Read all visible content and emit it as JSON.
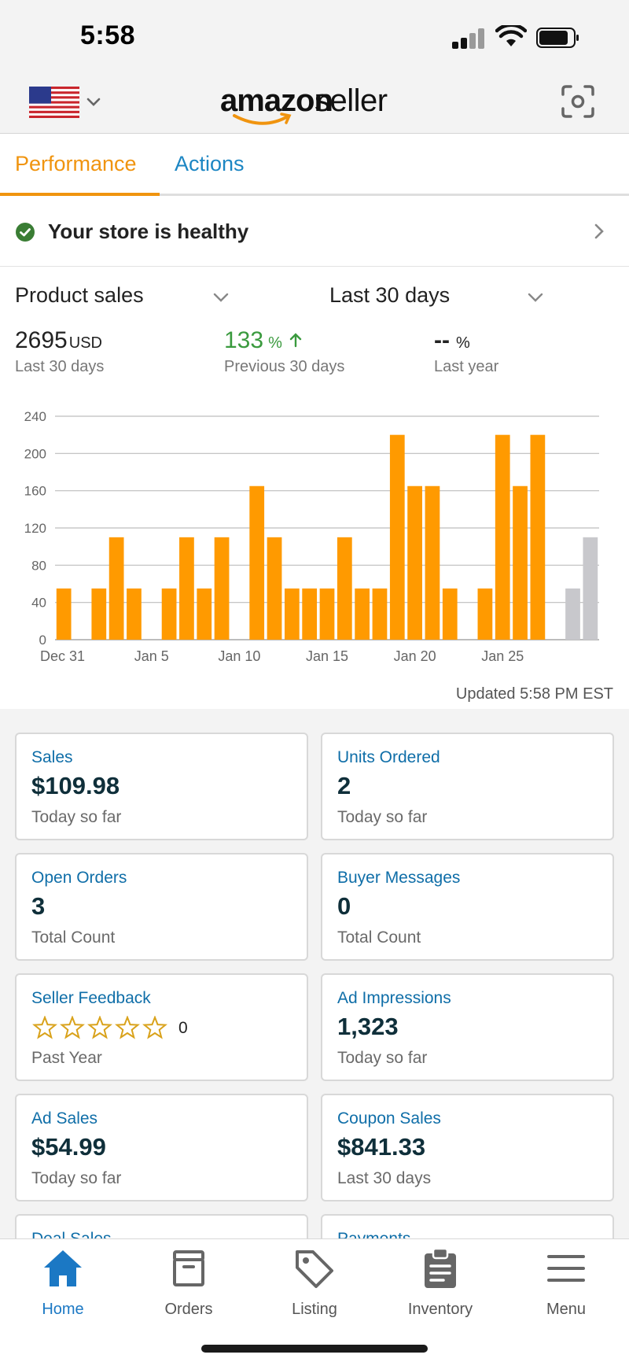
{
  "status_bar": {
    "time": "5:58"
  },
  "header": {
    "logo_word_1": "amazon",
    "logo_word_2": "seller",
    "colors": {
      "accent": "#f0940f",
      "link": "#1c86c3"
    }
  },
  "tabs": [
    {
      "label": "Performance",
      "active": true
    },
    {
      "label": "Actions",
      "active": false
    }
  ],
  "health": {
    "text": "Your store is healthy",
    "status_color": "#3a7d34"
  },
  "metric": {
    "selected_metric": "Product sales",
    "selected_range": "Last 30 days",
    "current": {
      "value": "2695",
      "unit": "USD",
      "label": "Last 30 days"
    },
    "previous": {
      "value": "133",
      "unit": "%",
      "label": "Previous 30 days"
    },
    "last_year": {
      "value": "--",
      "unit": "%",
      "label": "Last year"
    }
  },
  "chart_data": {
    "type": "bar",
    "ylim": [
      0,
      240
    ],
    "y_ticks": [
      0,
      40,
      80,
      120,
      160,
      200,
      240
    ],
    "x_tick_labels": [
      {
        "index": 0,
        "label": "Dec 31"
      },
      {
        "index": 5,
        "label": "Jan 5"
      },
      {
        "index": 10,
        "label": "Jan 10"
      },
      {
        "index": 15,
        "label": "Jan 15"
      },
      {
        "index": 20,
        "label": "Jan 20"
      },
      {
        "index": 25,
        "label": "Jan 25"
      }
    ],
    "categories": [
      "Dec 31",
      "Jan 1",
      "Jan 2",
      "Jan 3",
      "Jan 4",
      "Jan 5",
      "Jan 6",
      "Jan 7",
      "Jan 8",
      "Jan 9",
      "Jan 10",
      "Jan 11",
      "Jan 12",
      "Jan 13",
      "Jan 14",
      "Jan 15",
      "Jan 16",
      "Jan 17",
      "Jan 18",
      "Jan 19",
      "Jan 20",
      "Jan 21",
      "Jan 22",
      "Jan 23",
      "Jan 24",
      "Jan 25",
      "Jan 26",
      "Jan 27",
      "Jan 28",
      "Jan 29",
      "Jan 30"
    ],
    "values": [
      55,
      0,
      55,
      110,
      55,
      0,
      55,
      110,
      55,
      110,
      0,
      165,
      110,
      55,
      55,
      55,
      110,
      55,
      55,
      220,
      165,
      165,
      55,
      0,
      55,
      220,
      165,
      220,
      0,
      55,
      110
    ],
    "gray_indices": [
      29,
      30
    ],
    "colors": {
      "bar": "#ff9a00",
      "bar_muted": "#c8c8cc",
      "grid": "#bdbdbd"
    }
  },
  "updated_text": "Updated 5:58 PM EST",
  "cards": [
    {
      "title": "Sales",
      "value": "$109.98",
      "sub": "Today so far"
    },
    {
      "title": "Units Ordered",
      "value": "2",
      "sub": "Today so far"
    },
    {
      "title": "Open Orders",
      "value": "3",
      "sub": "Total Count"
    },
    {
      "title": "Buyer Messages",
      "value": "0",
      "sub": "Total Count"
    },
    {
      "title": "Seller Feedback",
      "rating": 0,
      "rating_max": 5,
      "count": "0",
      "sub": "Past Year"
    },
    {
      "title": "Ad Impressions",
      "value": "1,323",
      "sub": "Today so far"
    },
    {
      "title": "Ad Sales",
      "value": "$54.99",
      "sub": "Today so far"
    },
    {
      "title": "Coupon Sales",
      "value": "$841.33",
      "sub": "Last 30 days"
    },
    {
      "title": "Deal Sales",
      "value": "",
      "sub": ""
    },
    {
      "title": "Payments",
      "value": "",
      "sub": ""
    }
  ],
  "bottom_nav": [
    {
      "label": "Home",
      "icon": "home-icon",
      "active": true
    },
    {
      "label": "Orders",
      "icon": "orders-box-icon",
      "active": false
    },
    {
      "label": "Listing",
      "icon": "tag-icon",
      "active": false
    },
    {
      "label": "Inventory",
      "icon": "clipboard-icon",
      "active": false
    },
    {
      "label": "Menu",
      "icon": "menu-icon",
      "active": false
    }
  ]
}
